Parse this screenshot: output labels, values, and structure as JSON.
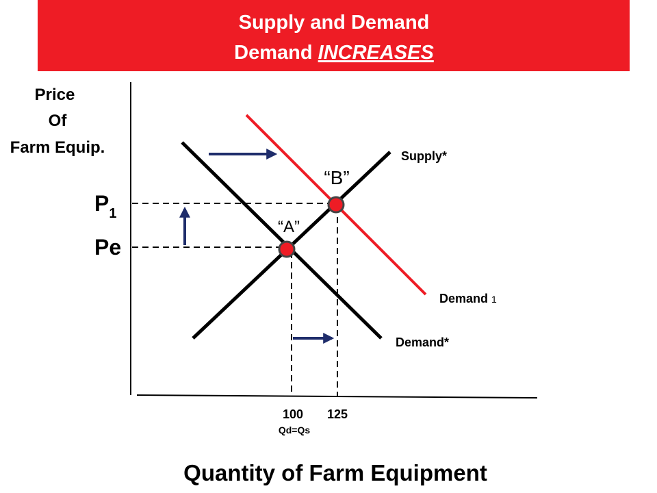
{
  "header": {
    "title": "Supply and Demand",
    "subtitle": {
      "prefix": "Demand",
      "emphasis": "INCREASES"
    }
  },
  "y_axis_label": [
    "Price",
    "Of",
    "Farm Equip."
  ],
  "x_axis_label": "Quantity of  Farm Equipment",
  "curves": [
    {
      "label": "Supply*"
    },
    {
      "label": "Demand*"
    },
    {
      "label": "Demand",
      "subscript": "1"
    }
  ],
  "points": [
    {
      "label": "“A”"
    },
    {
      "label": "“B”"
    }
  ],
  "prices": [
    {
      "label": "P",
      "subscript": "1"
    },
    {
      "label": "Pe"
    }
  ],
  "quantities": [
    100,
    125
  ],
  "quantity_note": "Qd=Qs"
}
